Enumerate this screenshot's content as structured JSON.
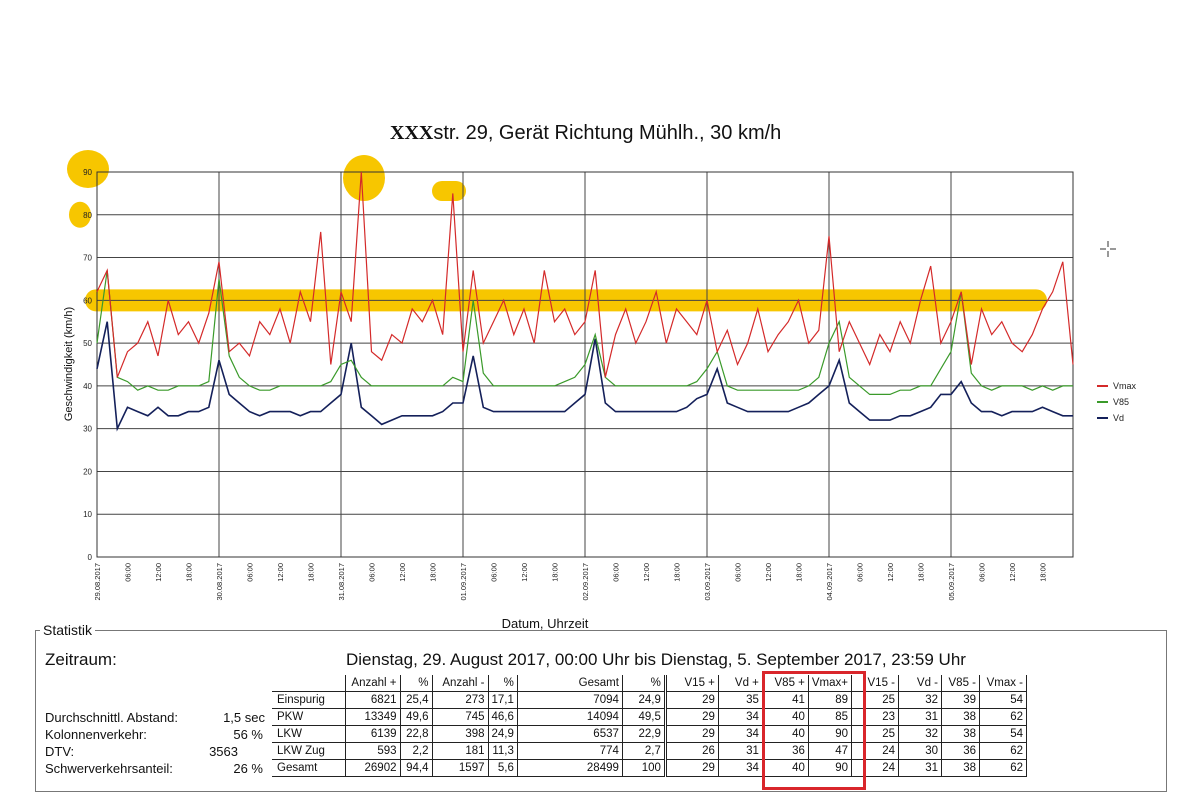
{
  "chart_data": {
    "type": "line",
    "title_prefix": "XXX",
    "title": "str. 29, Gerät Richtung Mühlh., 30 km/h",
    "xlabel": "Datum, Uhrzeit",
    "ylabel": "Geschwindigkeit (km/h)",
    "ylim": [
      0,
      90
    ],
    "yticks": [
      0,
      10,
      20,
      30,
      40,
      50,
      60,
      70,
      80,
      90
    ],
    "xlim_hours": [
      0,
      192
    ],
    "x_step_hours": 2,
    "xtick_labels": [
      "29.08.2017",
      "06:00",
      "12:00",
      "18:00",
      "30.08.2017",
      "06:00",
      "12:00",
      "18:00",
      "31.08.2017",
      "06:00",
      "12:00",
      "18:00",
      "01.09.2017",
      "06:00",
      "12:00",
      "18:00",
      "02.09.2017",
      "06:00",
      "12:00",
      "18:00",
      "03.09.2017",
      "06:00",
      "12:00",
      "18:00",
      "04.09.2017",
      "06:00",
      "12:00",
      "18:00",
      "05.09.2017",
      "06:00",
      "12:00",
      "18:00"
    ],
    "grid": true,
    "legend_position": "right",
    "highlight_level": 60,
    "highlighted_values": [
      90,
      80,
      85
    ],
    "series": [
      {
        "name": "Vmax",
        "color": "#d42a2a",
        "values": [
          62,
          67,
          42,
          48,
          50,
          55,
          47,
          60,
          52,
          55,
          50,
          57,
          69,
          48,
          50,
          47,
          55,
          52,
          58,
          50,
          62,
          55,
          76,
          45,
          62,
          55,
          90,
          48,
          46,
          52,
          50,
          58,
          55,
          60,
          52,
          85,
          48,
          67,
          50,
          55,
          60,
          52,
          58,
          50,
          67,
          55,
          58,
          52,
          55,
          67,
          42,
          52,
          58,
          50,
          55,
          62,
          50,
          58,
          55,
          52,
          60,
          48,
          53,
          45,
          50,
          58,
          48,
          52,
          55,
          60,
          50,
          53,
          75,
          48,
          55,
          50,
          45,
          52,
          48,
          55,
          50,
          60,
          68,
          50,
          55,
          62,
          45,
          58,
          52,
          55,
          50,
          48,
          52,
          58,
          62,
          69,
          45
        ]
      },
      {
        "name": "V85",
        "color": "#3a9a2a",
        "values": [
          50,
          67,
          42,
          41,
          39,
          40,
          39,
          39,
          40,
          40,
          40,
          41,
          65,
          47,
          42,
          40,
          39,
          39,
          40,
          40,
          40,
          40,
          40,
          41,
          45,
          46,
          42,
          40,
          40,
          40,
          40,
          40,
          40,
          40,
          40,
          42,
          41,
          60,
          43,
          40,
          40,
          40,
          40,
          40,
          40,
          40,
          41,
          42,
          45,
          52,
          42,
          40,
          40,
          40,
          40,
          40,
          40,
          40,
          40,
          41,
          44,
          48,
          40,
          39,
          39,
          39,
          39,
          39,
          39,
          39,
          40,
          42,
          50,
          55,
          42,
          40,
          38,
          38,
          38,
          39,
          39,
          40,
          40,
          44,
          48,
          62,
          43,
          40,
          39,
          40,
          40,
          40,
          39,
          40,
          39,
          40,
          40
        ]
      },
      {
        "name": "Vd",
        "color": "#14205a",
        "values": [
          44,
          55,
          30,
          35,
          34,
          33,
          35,
          33,
          33,
          34,
          34,
          35,
          46,
          38,
          36,
          34,
          33,
          34,
          34,
          34,
          33,
          34,
          34,
          36,
          38,
          50,
          35,
          33,
          31,
          32,
          33,
          33,
          33,
          33,
          34,
          36,
          36,
          47,
          35,
          34,
          34,
          34,
          34,
          34,
          34,
          34,
          34,
          36,
          38,
          51,
          36,
          34,
          34,
          34,
          34,
          34,
          34,
          34,
          35,
          37,
          38,
          44,
          36,
          35,
          34,
          34,
          34,
          34,
          34,
          35,
          36,
          38,
          40,
          46,
          36,
          34,
          32,
          32,
          32,
          33,
          33,
          34,
          35,
          38,
          38,
          41,
          36,
          34,
          34,
          33,
          34,
          34,
          34,
          35,
          34,
          33,
          33
        ]
      }
    ]
  },
  "statistik": {
    "legend": "Statistik",
    "zeitraum_label": "Zeitraum:",
    "zeitraum_value": "Dienstag, 29. August 2017, 00:00 Uhr bis Dienstag, 5. September 2017, 23:59 Uhr",
    "metrics": [
      {
        "label": "Durchschnittl. Abstand:",
        "value": "1,5 sec"
      },
      {
        "label": "Kolonnenverkehr:",
        "value": "56 %"
      },
      {
        "label": "DTV:",
        "value": "3563"
      },
      {
        "label": "Schwerverkehrsanteil:",
        "value": "26 %"
      }
    ],
    "table": {
      "headers": [
        "",
        "Anzahl +",
        "%",
        "Anzahl -",
        "%",
        "Gesamt",
        "%",
        "V15 +",
        "Vd +",
        "V85 +",
        "Vmax+",
        "",
        "V15 -",
        "Vd -",
        "V85 -",
        "Vmax -"
      ],
      "rows": [
        [
          "Einspurig",
          "6821",
          "25,4",
          "273",
          "17,1",
          "7094",
          "24,9",
          "29",
          "35",
          "41",
          "89",
          "",
          "25",
          "32",
          "39",
          "54"
        ],
        [
          "PKW",
          "13349",
          "49,6",
          "745",
          "46,6",
          "14094",
          "49,5",
          "29",
          "34",
          "40",
          "85",
          "",
          "23",
          "31",
          "38",
          "62"
        ],
        [
          "LKW",
          "6139",
          "22,8",
          "398",
          "24,9",
          "6537",
          "22,9",
          "29",
          "34",
          "40",
          "90",
          "",
          "25",
          "32",
          "38",
          "54"
        ],
        [
          "LKW Zug",
          "593",
          "2,2",
          "181",
          "11,3",
          "774",
          "2,7",
          "26",
          "31",
          "36",
          "47",
          "",
          "24",
          "30",
          "36",
          "62"
        ],
        [
          "Gesamt",
          "26902",
          "94,4",
          "1597",
          "5,6",
          "28499",
          "100",
          "29",
          "34",
          "40",
          "90",
          "",
          "24",
          "31",
          "38",
          "62"
        ]
      ]
    },
    "highlight_color": "#d9262b"
  }
}
